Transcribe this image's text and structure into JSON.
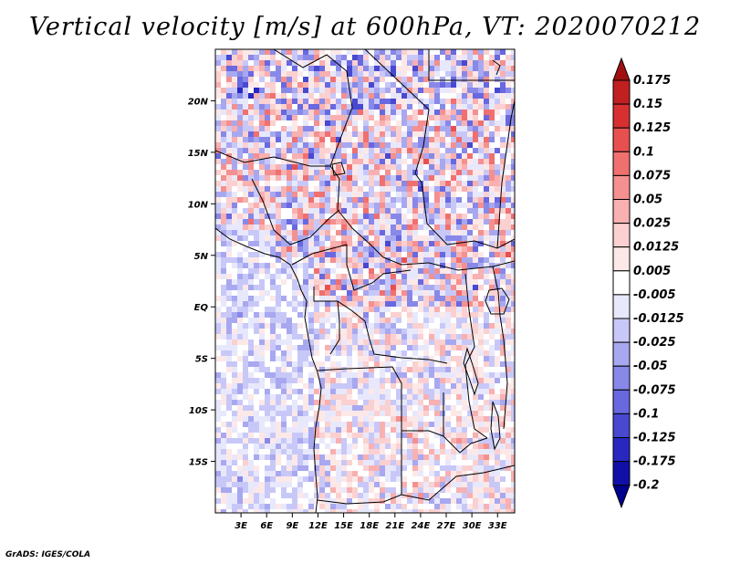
{
  "title": "Vertical velocity [m/s] at 600hPa, VT: 2020070212",
  "footer": "GrADS: IGES/COLA",
  "map": {
    "lon_range": [
      0,
      35
    ],
    "lat_range": [
      -20,
      25
    ],
    "lon_ticks": [
      "3E",
      "6E",
      "9E",
      "12E",
      "15E",
      "18E",
      "21E",
      "24E",
      "27E",
      "30E",
      "33E"
    ],
    "lat_ticks": [
      "20N",
      "15N",
      "10N",
      "5N",
      "EQ",
      "5S",
      "10S",
      "15S"
    ]
  },
  "colorbar": {
    "levels": [
      "0.175",
      "0.15",
      "0.125",
      "0.1",
      "0.075",
      "0.05",
      "0.025",
      "0.0125",
      "0.005",
      "-0.005",
      "-0.0125",
      "-0.025",
      "-0.05",
      "-0.075",
      "-0.1",
      "-0.125",
      "-0.175",
      "-0.2"
    ],
    "colors": [
      "#a01010",
      "#c02020",
      "#d83030",
      "#e85050",
      "#f07070",
      "#f49090",
      "#f8b0b0",
      "#fbd0d0",
      "#fde8e8",
      "#ffffff",
      "#e8e8fc",
      "#c8c8f8",
      "#a8a8f0",
      "#8888e8",
      "#6868e0",
      "#4848d0",
      "#2828c0",
      "#1010a8",
      "#000090"
    ]
  }
}
